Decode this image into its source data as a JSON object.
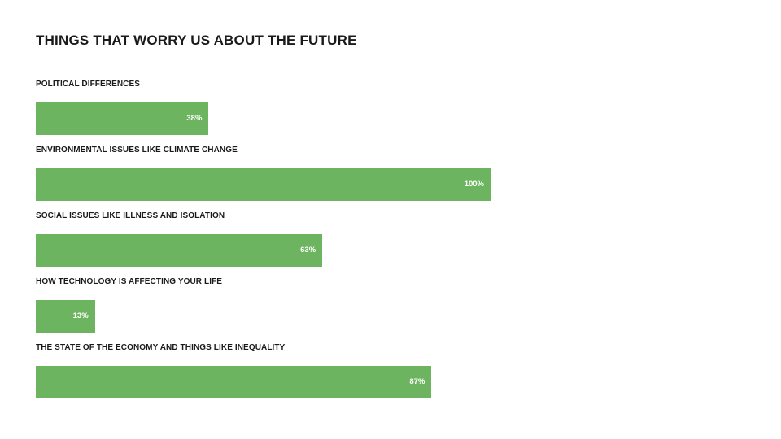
{
  "chart_data": {
    "type": "bar",
    "orientation": "horizontal",
    "title": "THINGS THAT WORRY US ABOUT THE FUTURE",
    "categories": [
      "POLITICAL DIFFERENCES",
      "ENVIRONMENTAL ISSUES LIKE CLIMATE CHANGE",
      "SOCIAL ISSUES LIKE ILLNESS AND ISOLATION",
      "HOW TECHNOLOGY IS AFFECTING YOUR LIFE",
      "THE STATE OF THE ECONOMY AND THINGS LIKE INEQUALITY"
    ],
    "values": [
      38,
      100,
      63,
      13,
      87
    ],
    "value_labels": [
      "38%",
      "100%",
      "63%",
      "13%",
      "87%"
    ],
    "unit": "%",
    "xlim": [
      0,
      100
    ],
    "grid": false,
    "bar_color": "#6cb45f"
  }
}
